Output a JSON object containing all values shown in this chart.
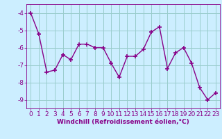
{
  "x": [
    0,
    1,
    2,
    3,
    4,
    5,
    6,
    7,
    8,
    9,
    10,
    11,
    12,
    13,
    14,
    15,
    16,
    17,
    18,
    19,
    20,
    21,
    22,
    23
  ],
  "y": [
    -4.0,
    -5.2,
    -7.4,
    -7.3,
    -6.4,
    -6.7,
    -5.8,
    -5.8,
    -6.0,
    -6.0,
    -6.9,
    -7.7,
    -6.5,
    -6.5,
    -6.1,
    -5.1,
    -4.8,
    -7.2,
    -6.3,
    -6.0,
    -6.9,
    -8.3,
    -9.0,
    -8.6
  ],
  "xlabel": "Windchill (Refroidissement éolien,°C)",
  "ylim": [
    -9.5,
    -3.5
  ],
  "xlim": [
    -0.5,
    23.5
  ],
  "yticks": [
    -9,
    -8,
    -7,
    -6,
    -5,
    -4
  ],
  "xticks": [
    0,
    1,
    2,
    3,
    4,
    5,
    6,
    7,
    8,
    9,
    10,
    11,
    12,
    13,
    14,
    15,
    16,
    17,
    18,
    19,
    20,
    21,
    22,
    23
  ],
  "line_color": "#880088",
  "marker": "+",
  "marker_size": 4,
  "bg_color": "#cceeff",
  "grid_color": "#99cccc",
  "xlabel_fontsize": 6.5,
  "tick_fontsize": 6.5,
  "line_width": 1.0
}
